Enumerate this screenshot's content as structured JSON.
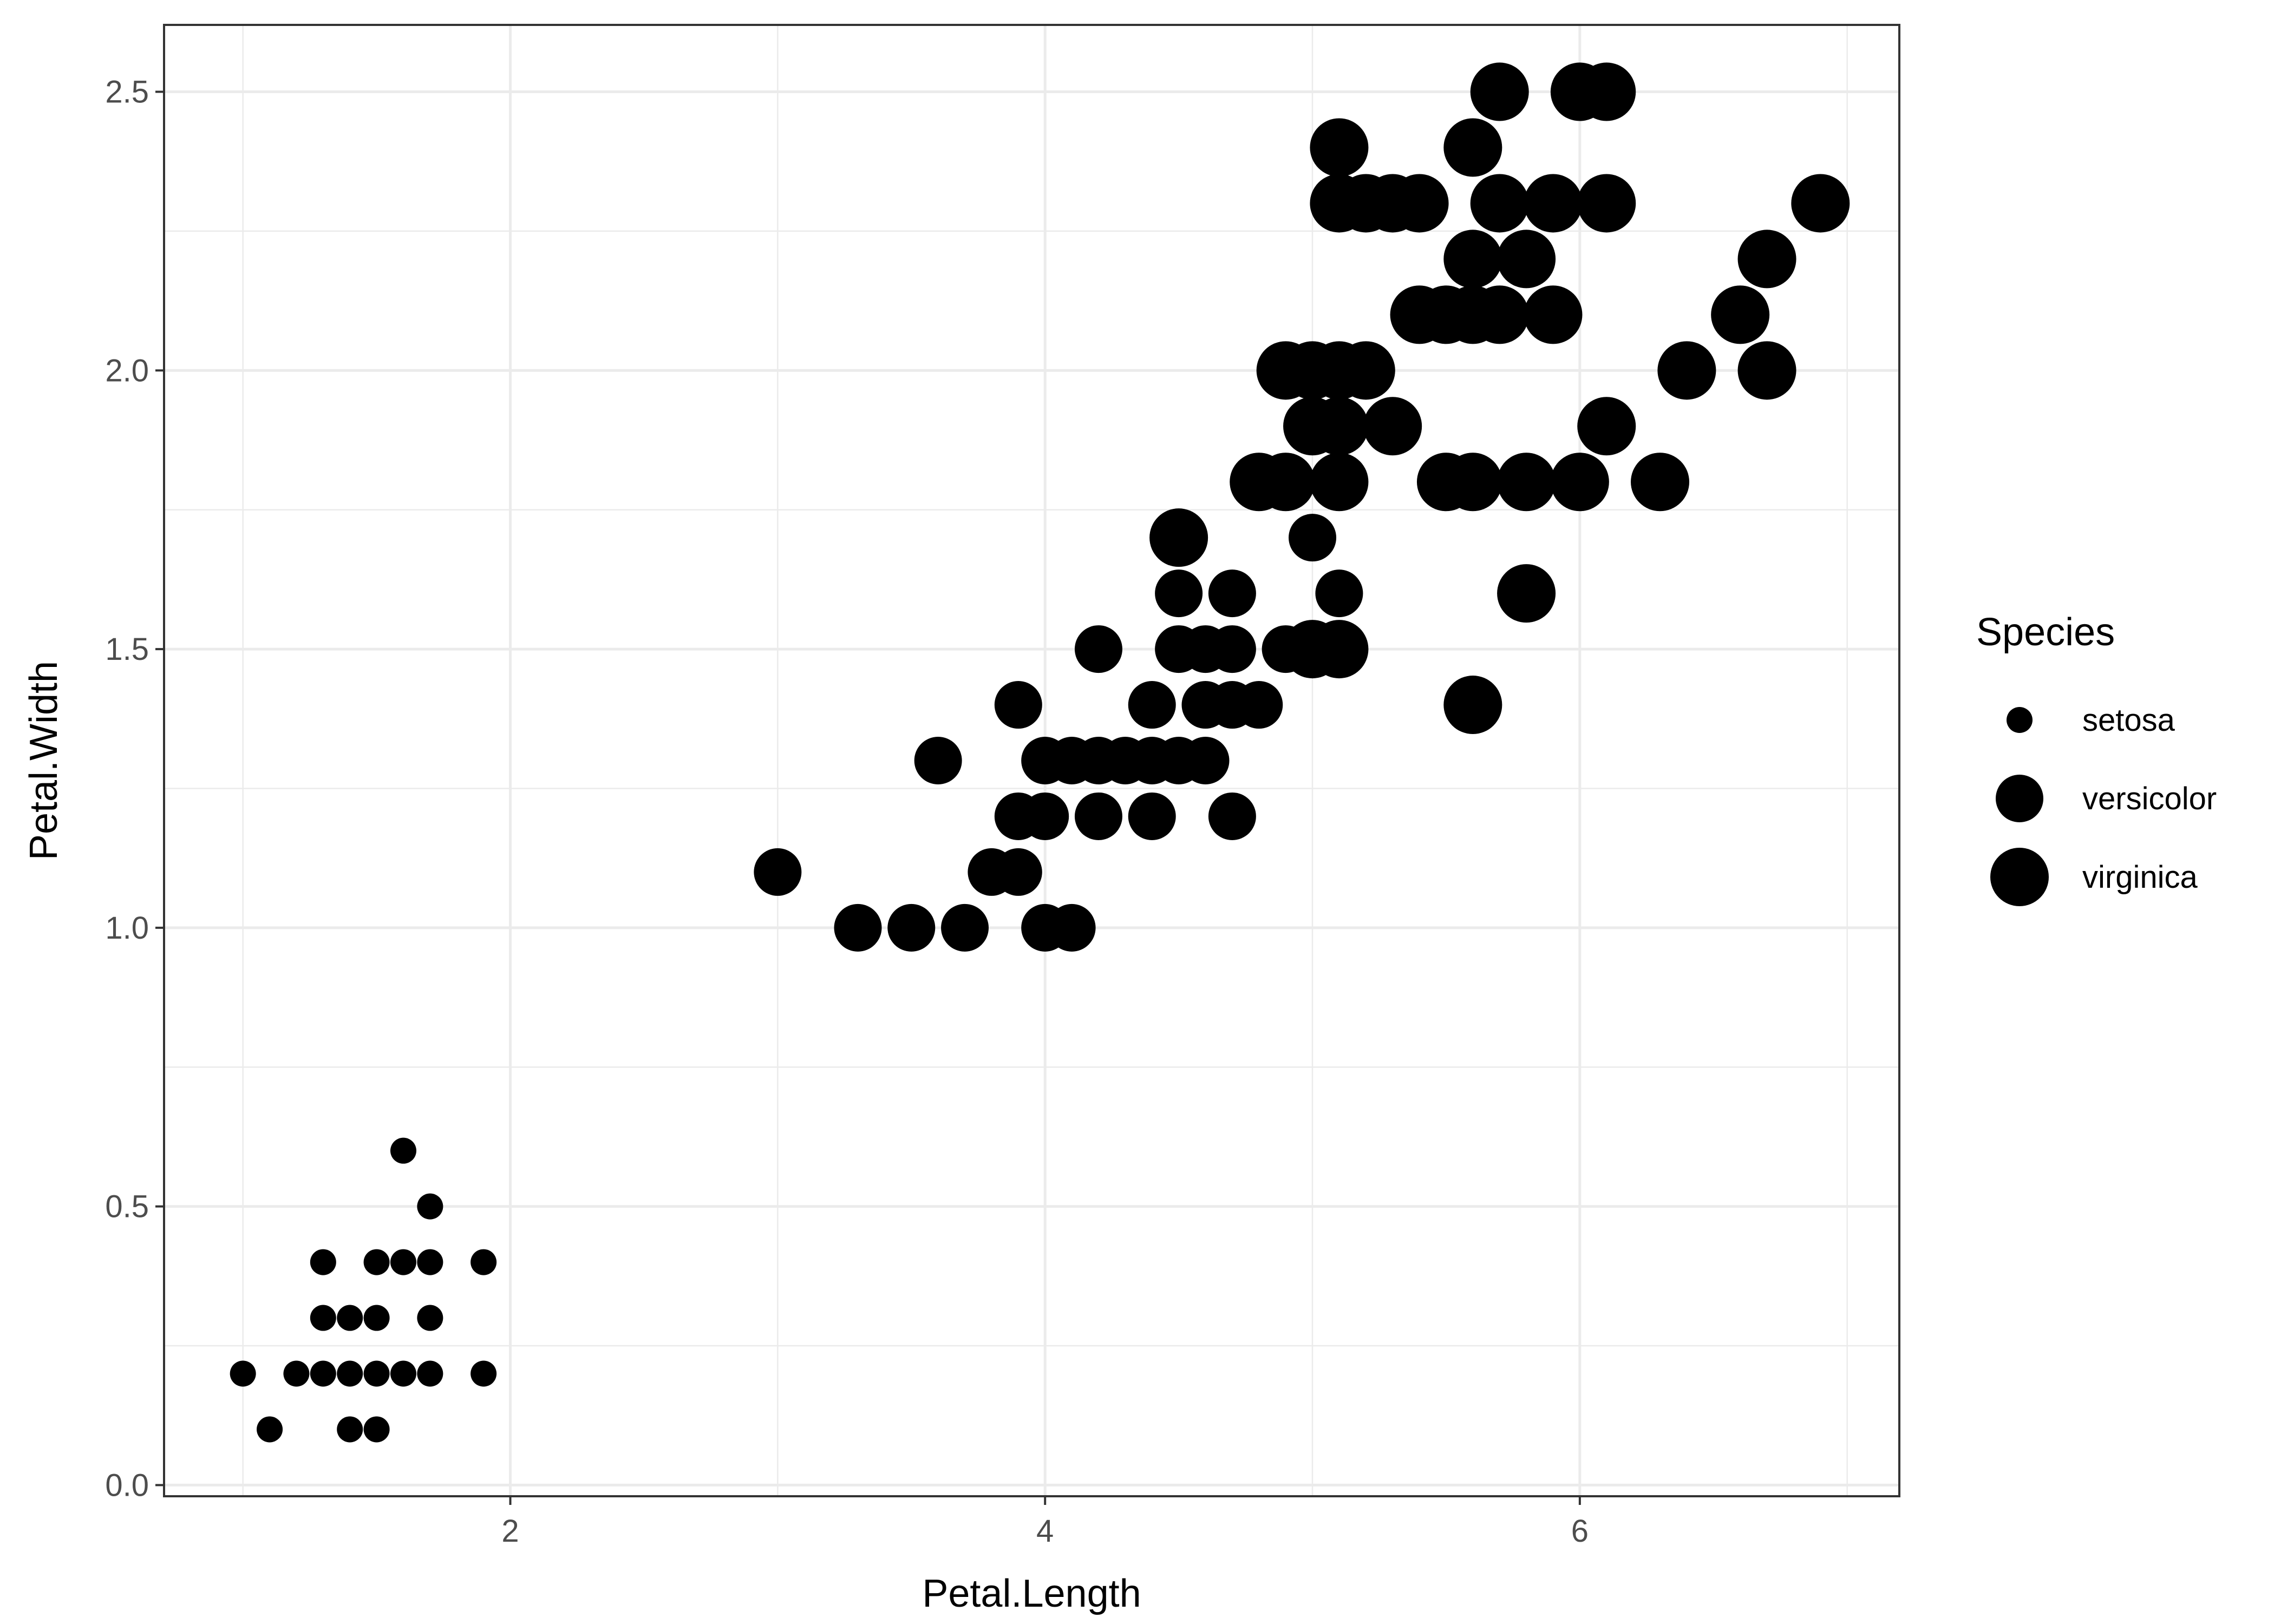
{
  "chart_data": {
    "type": "scatter",
    "xlabel": "Petal.Length",
    "ylabel": "Petal.Width",
    "xlim": [
      0.705,
      7.195
    ],
    "ylim": [
      -0.02,
      2.62
    ],
    "x_ticks": [
      2,
      4,
      6
    ],
    "y_ticks": [
      0.0,
      0.5,
      1.0,
      1.5,
      2.0,
      2.5
    ],
    "y_tick_labels": [
      "0.0",
      "0.5",
      "1.0",
      "1.5",
      "2.0",
      "2.5"
    ],
    "x_tick_labels": [
      "2",
      "4",
      "6"
    ],
    "grid": true,
    "legend": {
      "title": "Species",
      "position": "right",
      "entries": [
        "setosa",
        "versicolor",
        "virginica"
      ]
    },
    "point_color": "#000000",
    "size_by": "Species",
    "series": [
      {
        "name": "setosa",
        "size": "small",
        "points": [
          [
            1.0,
            0.2
          ],
          [
            1.1,
            0.1
          ],
          [
            1.2,
            0.2
          ],
          [
            1.3,
            0.2
          ],
          [
            1.3,
            0.3
          ],
          [
            1.3,
            0.4
          ],
          [
            1.4,
            0.1
          ],
          [
            1.4,
            0.2
          ],
          [
            1.4,
            0.3
          ],
          [
            1.5,
            0.1
          ],
          [
            1.5,
            0.2
          ],
          [
            1.5,
            0.3
          ],
          [
            1.5,
            0.4
          ],
          [
            1.6,
            0.2
          ],
          [
            1.6,
            0.4
          ],
          [
            1.6,
            0.6
          ],
          [
            1.7,
            0.2
          ],
          [
            1.7,
            0.3
          ],
          [
            1.7,
            0.4
          ],
          [
            1.7,
            0.5
          ],
          [
            1.9,
            0.2
          ],
          [
            1.9,
            0.4
          ]
        ]
      },
      {
        "name": "versicolor",
        "size": "medium",
        "points": [
          [
            3.0,
            1.1
          ],
          [
            3.3,
            1.0
          ],
          [
            3.5,
            1.0
          ],
          [
            3.6,
            1.3
          ],
          [
            3.7,
            1.0
          ],
          [
            3.8,
            1.1
          ],
          [
            3.9,
            1.1
          ],
          [
            3.9,
            1.2
          ],
          [
            3.9,
            1.4
          ],
          [
            4.0,
            1.0
          ],
          [
            4.0,
            1.2
          ],
          [
            4.0,
            1.3
          ],
          [
            4.1,
            1.0
          ],
          [
            4.1,
            1.3
          ],
          [
            4.2,
            1.2
          ],
          [
            4.2,
            1.3
          ],
          [
            4.2,
            1.5
          ],
          [
            4.3,
            1.3
          ],
          [
            4.4,
            1.2
          ],
          [
            4.4,
            1.3
          ],
          [
            4.4,
            1.4
          ],
          [
            4.5,
            1.3
          ],
          [
            4.5,
            1.5
          ],
          [
            4.5,
            1.6
          ],
          [
            4.6,
            1.3
          ],
          [
            4.6,
            1.4
          ],
          [
            4.6,
            1.5
          ],
          [
            4.7,
            1.2
          ],
          [
            4.7,
            1.4
          ],
          [
            4.7,
            1.5
          ],
          [
            4.7,
            1.6
          ],
          [
            4.8,
            1.4
          ],
          [
            4.8,
            1.8
          ],
          [
            4.9,
            1.5
          ],
          [
            5.0,
            1.7
          ],
          [
            5.1,
            1.6
          ]
        ]
      },
      {
        "name": "virginica",
        "size": "large",
        "points": [
          [
            4.5,
            1.7
          ],
          [
            4.8,
            1.8
          ],
          [
            4.9,
            1.8
          ],
          [
            4.9,
            2.0
          ],
          [
            5.0,
            1.5
          ],
          [
            5.0,
            1.9
          ],
          [
            5.0,
            2.0
          ],
          [
            5.1,
            1.5
          ],
          [
            5.1,
            1.8
          ],
          [
            5.1,
            1.9
          ],
          [
            5.1,
            2.0
          ],
          [
            5.1,
            2.3
          ],
          [
            5.1,
            2.4
          ],
          [
            5.2,
            2.0
          ],
          [
            5.2,
            2.3
          ],
          [
            5.3,
            1.9
          ],
          [
            5.3,
            2.3
          ],
          [
            5.4,
            2.1
          ],
          [
            5.4,
            2.3
          ],
          [
            5.5,
            1.8
          ],
          [
            5.5,
            2.1
          ],
          [
            5.6,
            1.4
          ],
          [
            5.6,
            1.8
          ],
          [
            5.6,
            2.1
          ],
          [
            5.6,
            2.2
          ],
          [
            5.6,
            2.4
          ],
          [
            5.7,
            2.1
          ],
          [
            5.7,
            2.3
          ],
          [
            5.7,
            2.5
          ],
          [
            5.8,
            1.6
          ],
          [
            5.8,
            1.8
          ],
          [
            5.8,
            2.2
          ],
          [
            5.9,
            2.1
          ],
          [
            5.9,
            2.3
          ],
          [
            6.0,
            1.8
          ],
          [
            6.0,
            2.5
          ],
          [
            6.1,
            1.9
          ],
          [
            6.1,
            2.3
          ],
          [
            6.1,
            2.5
          ],
          [
            6.3,
            1.8
          ],
          [
            6.4,
            2.0
          ],
          [
            6.6,
            2.1
          ],
          [
            6.7,
            2.0
          ],
          [
            6.7,
            2.2
          ],
          [
            6.9,
            2.3
          ]
        ]
      }
    ]
  }
}
